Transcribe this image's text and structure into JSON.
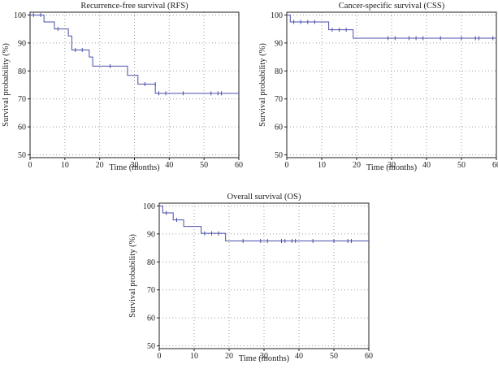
{
  "chart_data": [
    {
      "type": "line",
      "subtype": "kaplan-meier step",
      "title": "Recurrence-free survival (RFS)",
      "xlabel": "Time (months)",
      "ylabel": "Survival probability (%)",
      "xlim": [
        0,
        60
      ],
      "ylim": [
        49,
        101
      ],
      "xticks": [
        0,
        10,
        20,
        30,
        40,
        50,
        60
      ],
      "yticks": [
        50,
        60,
        70,
        80,
        90,
        100
      ],
      "grid": true,
      "color": "#4a4fa8",
      "steps": [
        [
          0,
          100
        ],
        [
          4,
          97.5
        ],
        [
          7,
          95
        ],
        [
          11,
          92.5
        ],
        [
          12,
          87.5
        ],
        [
          17,
          85
        ],
        [
          18,
          81.7
        ],
        [
          28,
          78.4
        ],
        [
          31,
          75.3
        ],
        [
          36,
          72
        ]
      ],
      "end_x": 60,
      "censored": [
        [
          1,
          100
        ],
        [
          3,
          100
        ],
        [
          8,
          95
        ],
        [
          13,
          87.5
        ],
        [
          15,
          87.5
        ],
        [
          23,
          81.7
        ],
        [
          33,
          75.3
        ],
        [
          36,
          75.3
        ],
        [
          37,
          72
        ],
        [
          39,
          72
        ],
        [
          44,
          72
        ],
        [
          52,
          72
        ],
        [
          54,
          72
        ],
        [
          55,
          72
        ]
      ]
    },
    {
      "type": "line",
      "subtype": "kaplan-meier step",
      "title": "Cancer-specific survival (CSS)",
      "xlabel": "Time (months)",
      "ylabel": "Survival probability (%)",
      "xlim": [
        0,
        60
      ],
      "ylim": [
        49,
        101
      ],
      "xticks": [
        0,
        10,
        20,
        30,
        40,
        50,
        60
      ],
      "yticks": [
        50,
        60,
        70,
        80,
        90,
        100
      ],
      "grid": true,
      "color": "#4a4fa8",
      "steps": [
        [
          0,
          100
        ],
        [
          1,
          97.5
        ],
        [
          12,
          94.7
        ],
        [
          19,
          91.7
        ]
      ],
      "end_x": 60,
      "censored": [
        [
          2,
          97.5
        ],
        [
          4,
          97.5
        ],
        [
          6,
          97.5
        ],
        [
          8,
          97.5
        ],
        [
          13,
          94.7
        ],
        [
          15,
          94.7
        ],
        [
          17,
          94.7
        ],
        [
          29,
          91.7
        ],
        [
          31,
          91.7
        ],
        [
          35,
          91.7
        ],
        [
          37,
          91.7
        ],
        [
          39,
          91.7
        ],
        [
          44,
          91.7
        ],
        [
          50,
          91.7
        ],
        [
          54,
          91.7
        ],
        [
          55,
          91.7
        ],
        [
          59,
          91.7
        ]
      ]
    },
    {
      "type": "line",
      "subtype": "kaplan-meier step",
      "title": "Overall survival (OS)",
      "xlabel": "Time (months)",
      "ylabel": "Survival probability (%)",
      "xlim": [
        0,
        60
      ],
      "ylim": [
        49,
        101
      ],
      "xticks": [
        0,
        10,
        20,
        30,
        40,
        50,
        60
      ],
      "yticks": [
        50,
        60,
        70,
        80,
        90,
        100
      ],
      "grid": true,
      "color": "#4a4fa8",
      "steps": [
        [
          0,
          100
        ],
        [
          1,
          97.5
        ],
        [
          4,
          95
        ],
        [
          7,
          92.7
        ],
        [
          12,
          90.2
        ],
        [
          19,
          87.5
        ]
      ],
      "end_x": 60,
      "censored": [
        [
          2,
          97.5
        ],
        [
          5,
          95
        ],
        [
          13,
          90.2
        ],
        [
          15,
          90.2
        ],
        [
          17,
          90.2
        ],
        [
          24,
          87.5
        ],
        [
          29,
          87.5
        ],
        [
          31,
          87.5
        ],
        [
          35,
          87.5
        ],
        [
          36,
          87.5
        ],
        [
          38,
          87.5
        ],
        [
          39,
          87.5
        ],
        [
          44,
          87.5
        ],
        [
          50,
          87.5
        ],
        [
          54,
          87.5
        ],
        [
          55,
          87.5
        ]
      ]
    }
  ]
}
